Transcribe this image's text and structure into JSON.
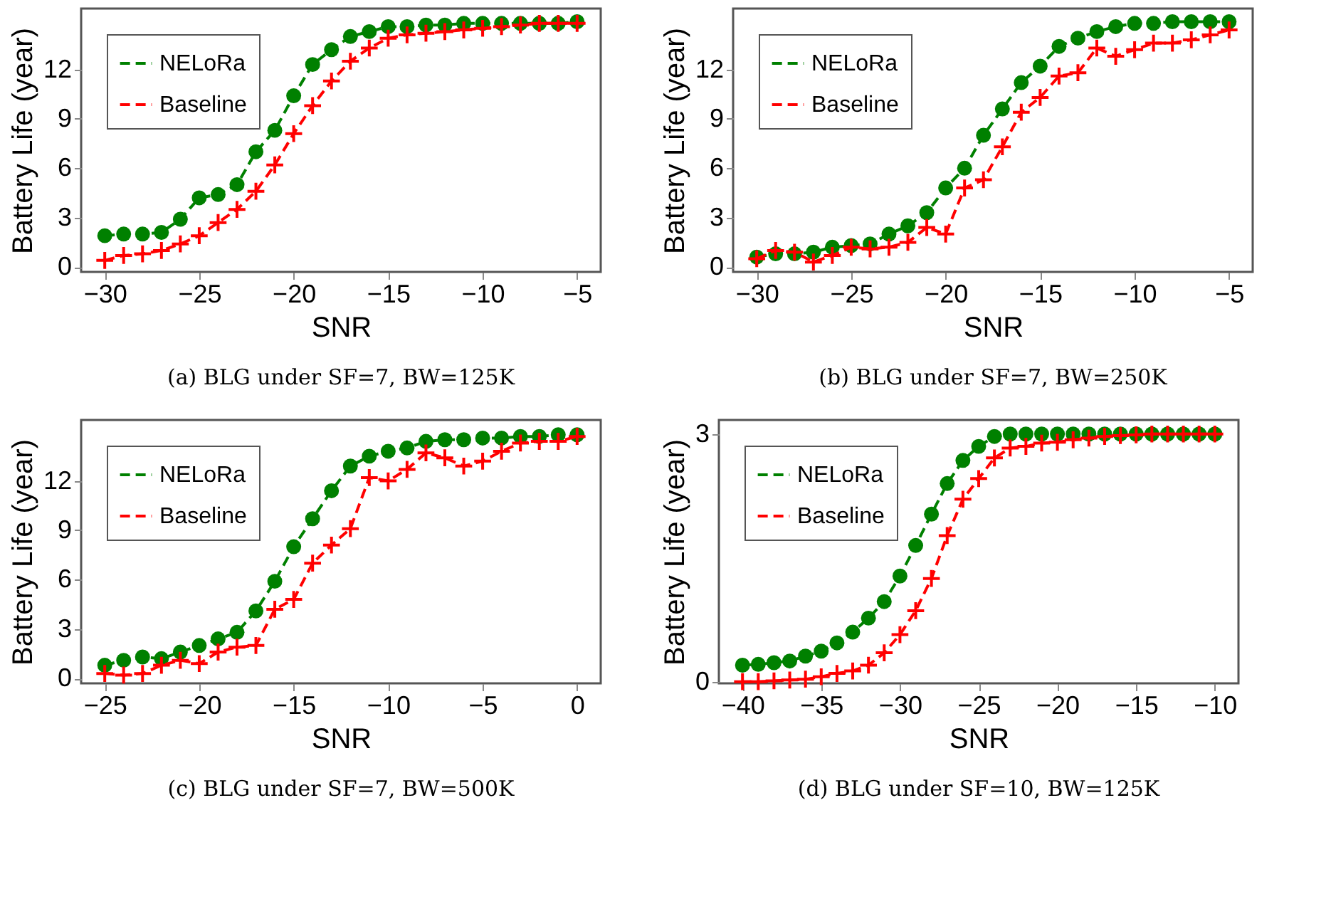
{
  "chart_data": [
    {
      "type": "line",
      "title": "(a) BLG under SF=7, BW=125K",
      "xlabel": "SNR",
      "ylabel": "Battery Life (year)",
      "xlim": [
        -31.25,
        -3.75
      ],
      "ylim": [
        -0.3,
        15.7
      ],
      "xticks": [
        -30,
        -25,
        -20,
        -15,
        -10,
        -5
      ],
      "yticks": [
        0,
        3,
        6,
        9,
        12
      ],
      "grid": false,
      "legend": "top left",
      "line_style": "dashed",
      "x": [
        -30,
        -29,
        -28,
        -27,
        -26,
        -25,
        -24,
        -23,
        -22,
        -21,
        -20,
        -19,
        -18,
        -17,
        -16,
        -15,
        -14,
        -13,
        -12,
        -11,
        -10,
        -9,
        -8,
        -7,
        -6,
        -5
      ],
      "series": [
        {
          "name": "NELoRa",
          "color": "#008000",
          "marker": "circle",
          "values": [
            1.9,
            2.0,
            2.0,
            2.1,
            2.9,
            4.2,
            4.4,
            5.0,
            7.0,
            8.3,
            10.4,
            12.3,
            13.2,
            14.0,
            14.3,
            14.6,
            14.6,
            14.7,
            14.7,
            14.8,
            14.8,
            14.8,
            14.8,
            14.8,
            14.8,
            14.9
          ]
        },
        {
          "name": "Baseline",
          "color": "#ff0000",
          "marker": "cross",
          "values": [
            0.4,
            0.7,
            0.8,
            1.0,
            1.4,
            1.9,
            2.7,
            3.5,
            4.6,
            6.2,
            8.1,
            9.8,
            11.3,
            12.5,
            13.3,
            13.9,
            14.1,
            14.2,
            14.3,
            14.4,
            14.5,
            14.6,
            14.7,
            14.8,
            14.8,
            14.8
          ]
        }
      ]
    },
    {
      "type": "line",
      "title": "(b) BLG under SF=7, BW=250K",
      "xlabel": "SNR",
      "ylabel": "Battery Life (year)",
      "xlim": [
        -31.25,
        -3.75
      ],
      "ylim": [
        -0.3,
        15.7
      ],
      "xticks": [
        -30,
        -25,
        -20,
        -15,
        -10,
        -5
      ],
      "yticks": [
        0,
        3,
        6,
        9,
        12
      ],
      "grid": false,
      "legend": "top left",
      "line_style": "dashed",
      "x": [
        -30,
        -29,
        -28,
        -27,
        -26,
        -25,
        -24,
        -23,
        -22,
        -21,
        -20,
        -19,
        -18,
        -17,
        -16,
        -15,
        -14,
        -13,
        -12,
        -11,
        -10,
        -9,
        -8,
        -7,
        -6,
        -5
      ],
      "series": [
        {
          "name": "NELoRa",
          "color": "#008000",
          "marker": "circle",
          "values": [
            0.6,
            0.8,
            0.8,
            0.9,
            1.2,
            1.3,
            1.4,
            2.0,
            2.5,
            3.3,
            4.8,
            6.0,
            8.0,
            9.6,
            11.2,
            12.2,
            13.4,
            13.9,
            14.3,
            14.6,
            14.8,
            14.8,
            14.9,
            14.9,
            14.9,
            14.9
          ]
        },
        {
          "name": "Baseline",
          "color": "#ff0000",
          "marker": "cross",
          "values": [
            0.5,
            1.0,
            0.9,
            0.3,
            0.7,
            1.2,
            1.1,
            1.2,
            1.5,
            2.4,
            2.0,
            4.8,
            5.3,
            7.3,
            9.4,
            10.3,
            11.6,
            11.8,
            13.3,
            12.8,
            13.2,
            13.6,
            13.6,
            13.8,
            14.1,
            14.4
          ]
        }
      ]
    },
    {
      "type": "line",
      "title": "(c) BLG under SF=7, BW=500K",
      "xlabel": "SNR",
      "ylabel": "Battery Life (year)",
      "xlim": [
        -26.25,
        1.25
      ],
      "ylim": [
        -0.3,
        15.7
      ],
      "xticks": [
        -25,
        -20,
        -15,
        -10,
        -5,
        0
      ],
      "yticks": [
        0,
        3,
        6,
        9,
        12
      ],
      "grid": false,
      "legend": "top left",
      "line_style": "dashed",
      "x": [
        -25,
        -24,
        -23,
        -22,
        -21,
        -20,
        -19,
        -18,
        -17,
        -16,
        -15,
        -14,
        -13,
        -12,
        -11,
        -10,
        -9,
        -8,
        -7,
        -6,
        -5,
        -4,
        -3,
        -2,
        -1,
        0
      ],
      "series": [
        {
          "name": "NELoRa",
          "color": "#008000",
          "marker": "circle",
          "values": [
            0.8,
            1.1,
            1.3,
            1.2,
            1.6,
            2.0,
            2.4,
            2.8,
            4.1,
            5.9,
            8.0,
            9.7,
            11.4,
            12.9,
            13.5,
            13.8,
            14.0,
            14.4,
            14.5,
            14.5,
            14.6,
            14.6,
            14.7,
            14.7,
            14.8,
            14.8
          ]
        },
        {
          "name": "Baseline",
          "color": "#ff0000",
          "marker": "cross",
          "values": [
            0.3,
            0.2,
            0.3,
            0.8,
            1.1,
            0.9,
            1.6,
            1.9,
            2.0,
            4.2,
            4.8,
            7.0,
            8.1,
            9.1,
            12.2,
            12.0,
            12.7,
            13.7,
            13.4,
            12.9,
            13.2,
            13.8,
            14.3,
            14.4,
            14.4,
            14.7
          ]
        }
      ]
    },
    {
      "type": "line",
      "title": "(d) BLG under SF=10, BW=125K",
      "xlabel": "SNR",
      "ylabel": "Battery Life (year)",
      "xlim": [
        -41.5,
        -8.5
      ],
      "ylim": [
        -0.02,
        3.17
      ],
      "xticks": [
        -40,
        -35,
        -30,
        -25,
        -20,
        -15,
        -10
      ],
      "yticks": [
        0,
        3
      ],
      "grid": false,
      "legend": "top left",
      "line_style": "dashed",
      "x": [
        -40,
        -39,
        -38,
        -37,
        -36,
        -35,
        -34,
        -33,
        -32,
        -31,
        -30,
        -29,
        -28,
        -27,
        -26,
        -25,
        -24,
        -23,
        -22,
        -21,
        -20,
        -19,
        -18,
        -17,
        -16,
        -15,
        -14,
        -13,
        -12,
        -11,
        -10
      ],
      "series": [
        {
          "name": "NELoRa",
          "color": "#008000",
          "marker": "circle",
          "values": [
            0.2,
            0.21,
            0.23,
            0.25,
            0.31,
            0.37,
            0.47,
            0.6,
            0.77,
            0.97,
            1.28,
            1.65,
            2.03,
            2.4,
            2.68,
            2.85,
            2.97,
            3.0,
            3.0,
            3.0,
            3.0,
            3.0,
            3.0,
            3.0,
            3.0,
            3.0,
            3.0,
            3.0,
            3.0,
            3.0,
            3.0
          ]
        },
        {
          "name": "Baseline",
          "color": "#ff0000",
          "marker": "cross",
          "values": [
            0.0,
            0.0,
            0.01,
            0.02,
            0.03,
            0.06,
            0.1,
            0.13,
            0.2,
            0.35,
            0.57,
            0.86,
            1.25,
            1.77,
            2.21,
            2.46,
            2.71,
            2.83,
            2.85,
            2.89,
            2.9,
            2.93,
            2.95,
            2.97,
            2.98,
            2.99,
            3.0,
            3.0,
            3.0,
            3.0,
            3.0
          ]
        }
      ]
    }
  ]
}
